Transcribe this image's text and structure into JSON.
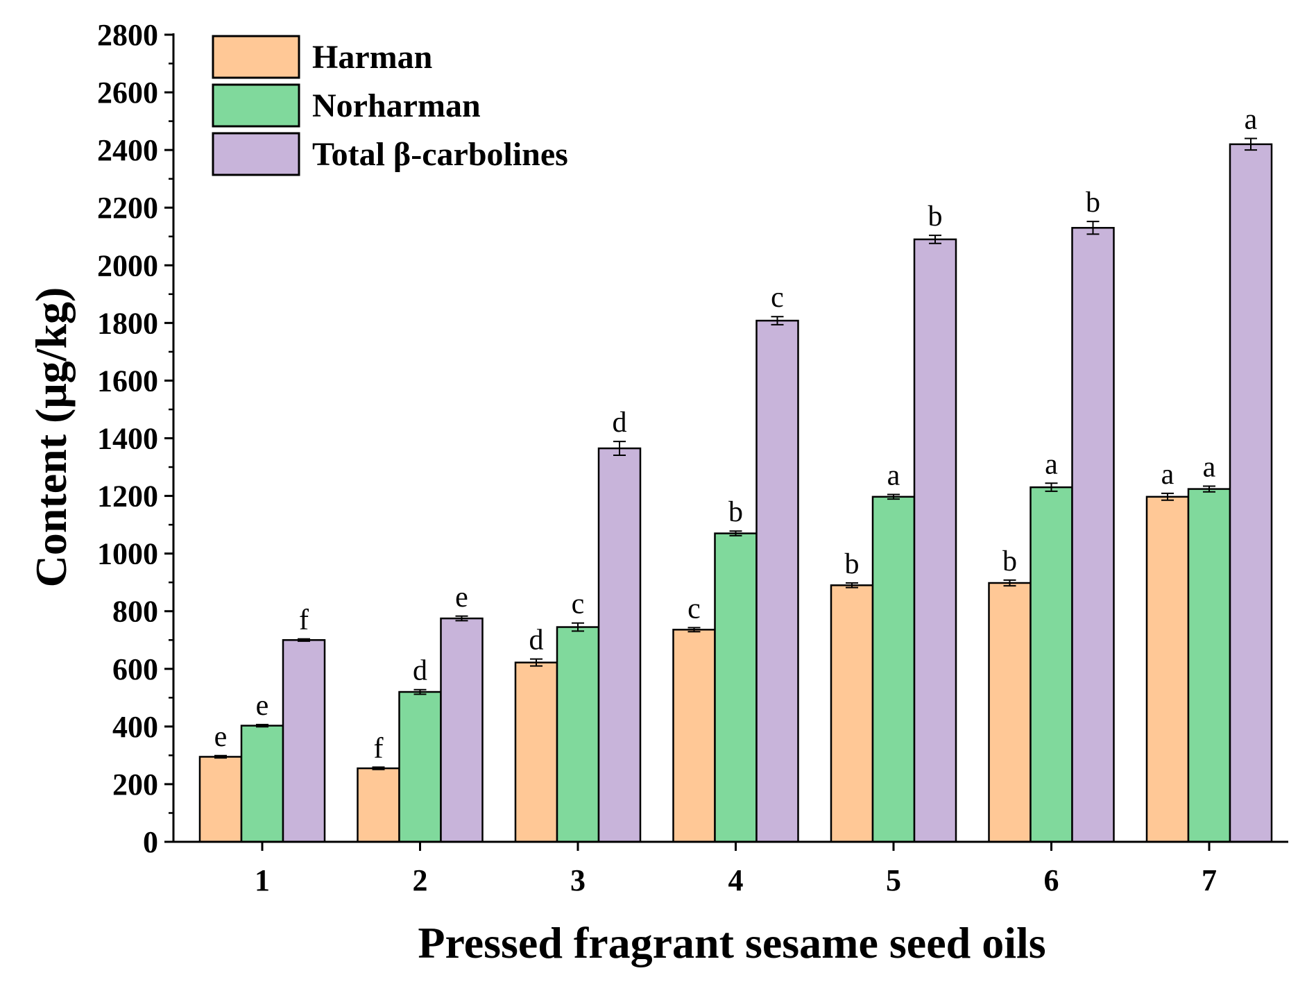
{
  "chart_data": {
    "type": "bar",
    "title": "",
    "xlabel": "Pressed fragrant sesame seed oils",
    "ylabel": "Content (μg/kg)",
    "ylim": [
      0,
      2800
    ],
    "yticks": [
      "0",
      "200",
      "400",
      "600",
      "800",
      "1000",
      "1200",
      "1400",
      "1600",
      "1800",
      "2000",
      "2200",
      "2400",
      "2600",
      "2800"
    ],
    "categories": [
      "1",
      "2",
      "3",
      "4",
      "5",
      "6",
      "7"
    ],
    "grid": false,
    "legend_position": "top-left",
    "series": [
      {
        "name": "Harman",
        "color": "#FFC896",
        "values": [
          295,
          255,
          622,
          736,
          890,
          898,
          1197
        ],
        "errors": [
          4,
          4,
          12,
          7,
          8,
          10,
          12
        ],
        "letters": [
          "e",
          "f",
          "d",
          "c",
          "b",
          "b",
          "a"
        ]
      },
      {
        "name": "Norharman",
        "color": "#80D99C",
        "values": [
          403,
          520,
          745,
          1070,
          1197,
          1230,
          1224
        ],
        "errors": [
          4,
          8,
          14,
          8,
          8,
          14,
          10
        ],
        "letters": [
          "e",
          "d",
          "c",
          "b",
          "a",
          "a",
          "a"
        ]
      },
      {
        "name": "Total β-carbolines",
        "color": "#C8B4DA",
        "values": [
          700,
          775,
          1365,
          1808,
          2090,
          2130,
          2420
        ],
        "errors": [
          4,
          8,
          24,
          14,
          14,
          22,
          20
        ],
        "letters": [
          "f",
          "e",
          "d",
          "c",
          "b",
          "b",
          "a"
        ]
      }
    ]
  }
}
